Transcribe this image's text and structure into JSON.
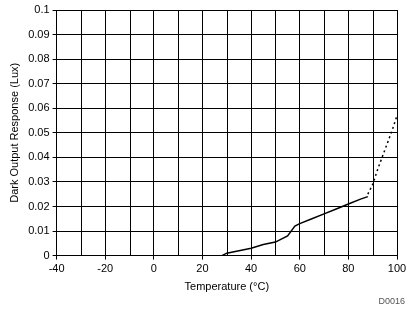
{
  "chart_data": {
    "type": "line",
    "x_label": "Temperature (°C)",
    "y_label": "Dark Output Response (Lux)",
    "annotation": "D0016",
    "series": [
      {
        "x": [
          28,
          30,
          35,
          40,
          45,
          50,
          55,
          58,
          60,
          65,
          70,
          75,
          80,
          85,
          88
        ],
        "values": [
          0,
          0.001,
          0.002,
          0.003,
          0.0045,
          0.0055,
          0.008,
          0.012,
          0.013,
          0.015,
          0.017,
          0.019,
          0.021,
          0.023,
          0.024
        ],
        "color": "#000000",
        "line_style": "solid"
      },
      {
        "x": [
          88,
          90,
          92,
          95,
          98,
          100
        ],
        "values": [
          0.025,
          0.029,
          0.035,
          0.043,
          0.051,
          0.057
        ],
        "color": "#000000",
        "line_style": "dotted"
      }
    ],
    "xlim": [
      -40,
      100
    ],
    "xticks": [
      -40,
      -20,
      0,
      20,
      40,
      60,
      80,
      100
    ],
    "ylim": [
      0,
      0.1
    ],
    "yticks": [
      0,
      0.01,
      0.02,
      0.03,
      0.04,
      0.05,
      0.06,
      0.07,
      0.08,
      0.09,
      0.1
    ],
    "grid": true
  }
}
